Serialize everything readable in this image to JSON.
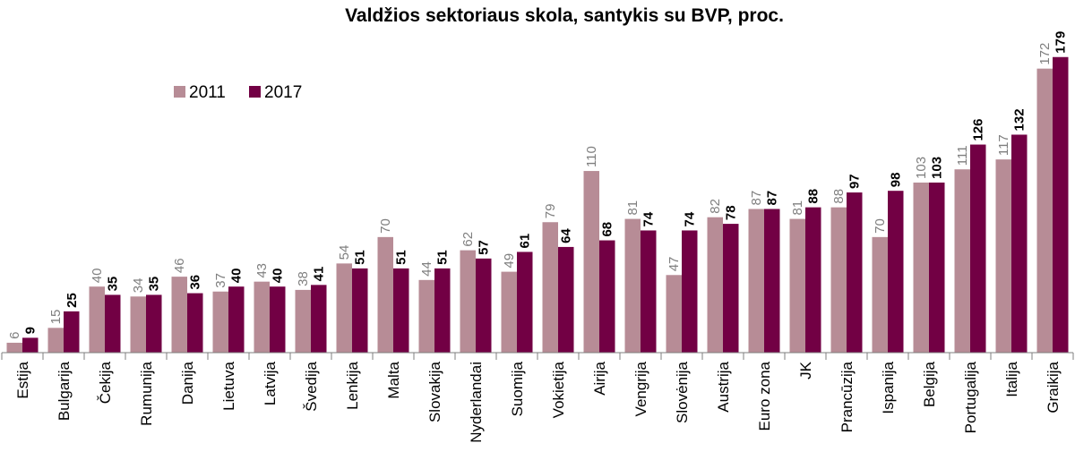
{
  "chart_data": {
    "type": "bar",
    "title": "Valdžios sektoriaus skola, santykis su BVP, proc.",
    "xlabel": "",
    "ylabel": "",
    "ylim": [
      0,
      185
    ],
    "grid": false,
    "legend_position": "top-left",
    "categories": [
      "Estija",
      "Bulgarija",
      "Čekija",
      "Rumunija",
      "Danija",
      "Lietuva",
      "Latvija",
      "Švedija",
      "Lenkija",
      "Malta",
      "Slovakija",
      "Nyderlandai",
      "Suomija",
      "Vokietija",
      "Airija",
      "Vengrija",
      "Slovėnija",
      "Austrija",
      "Euro zona",
      "JK",
      "Prancūzija",
      "Ispanija",
      "Belgija",
      "Portugalija",
      "Italija",
      "Graikija"
    ],
    "series": [
      {
        "name": "2011",
        "color": "#b78c96",
        "values": [
          6,
          15,
          40,
          34,
          46,
          37,
          43,
          38,
          54,
          70,
          44,
          62,
          49,
          79,
          110,
          81,
          47,
          82,
          87,
          81,
          88,
          70,
          103,
          111,
          117,
          172
        ]
      },
      {
        "name": "2017",
        "color": "#720044",
        "values": [
          9,
          25,
          35,
          35,
          36,
          40,
          40,
          41,
          51,
          51,
          51,
          57,
          61,
          64,
          68,
          74,
          74,
          78,
          87,
          88,
          97,
          98,
          103,
          126,
          132,
          179
        ]
      }
    ]
  }
}
